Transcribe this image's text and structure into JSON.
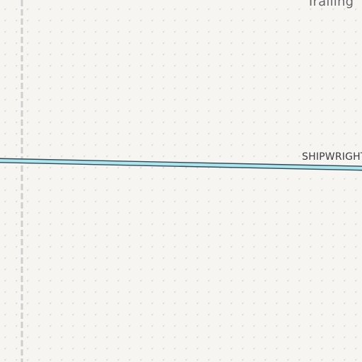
{
  "map": {
    "place_label": "Trailing",
    "street_label": "SHIPWRIGHT",
    "colors": {
      "background": "#f6f5f2",
      "dot_pattern": "#e1e0d6",
      "road_fill": "#aee4ee",
      "road_casing": "#2e4a55",
      "boundary_dash": "#cfcfcf"
    }
  }
}
